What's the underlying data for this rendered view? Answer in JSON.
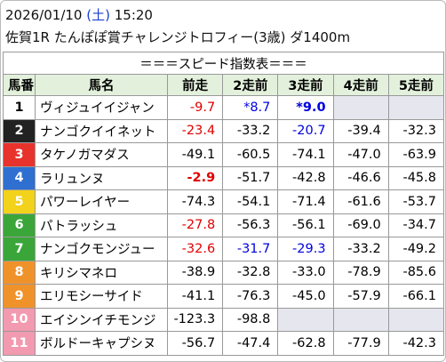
{
  "header": {
    "date": "2026/01/10",
    "weekday": "(土)",
    "time": "15:20",
    "race": "佐賀1R たんぽぽ賞チャレンジトロフィー(3歳) ダ1400m"
  },
  "table": {
    "title": "＝＝＝スピード指数表＝＝＝",
    "columns": [
      "馬番",
      "馬名",
      "前走",
      "2走前",
      "3走前",
      "4走前",
      "5走前"
    ],
    "rows": [
      {
        "number": "1",
        "frame_color": "#ffffff",
        "number_color": "#000000",
        "name": "ヴィジュイイジャン",
        "cells": [
          {
            "text": "-9.7",
            "color": "#e00000"
          },
          {
            "text": "*8.7",
            "color": "#0000e0"
          },
          {
            "text": "*9.0",
            "color": "#0000e0",
            "bold": true
          },
          null,
          null
        ]
      },
      {
        "number": "2",
        "frame_color": "#222222",
        "number_color": "#ffffff",
        "name": "ナンゴクイイネット",
        "cells": [
          {
            "text": "-23.4",
            "color": "#e00000"
          },
          {
            "text": "-33.2"
          },
          {
            "text": "-20.7",
            "color": "#0000e0"
          },
          {
            "text": "-39.4"
          },
          {
            "text": "-32.3"
          }
        ]
      },
      {
        "number": "3",
        "frame_color": "#e8322c",
        "number_color": "#ffffff",
        "name": "タケノガマダス",
        "cells": [
          {
            "text": "-49.1"
          },
          {
            "text": "-60.5"
          },
          {
            "text": "-74.1"
          },
          {
            "text": "-47.0"
          },
          {
            "text": "-63.9"
          }
        ]
      },
      {
        "number": "4",
        "frame_color": "#2f6fd0",
        "number_color": "#ffffff",
        "name": "ラリュンヌ",
        "cells": [
          {
            "text": "-2.9",
            "color": "#e00000",
            "bold": true
          },
          {
            "text": "-51.7"
          },
          {
            "text": "-42.8"
          },
          {
            "text": "-46.6"
          },
          {
            "text": "-45.8"
          }
        ]
      },
      {
        "number": "5",
        "frame_color": "#f2d21a",
        "number_color": "#ffffff",
        "name": "パワーレイヤー",
        "cells": [
          {
            "text": "-74.3"
          },
          {
            "text": "-54.1"
          },
          {
            "text": "-71.4"
          },
          {
            "text": "-61.6"
          },
          {
            "text": "-53.7"
          }
        ]
      },
      {
        "number": "6",
        "frame_color": "#3aa63a",
        "number_color": "#ffffff",
        "name": "パトラッシュ",
        "cells": [
          {
            "text": "-27.8",
            "color": "#e00000"
          },
          {
            "text": "-56.3"
          },
          {
            "text": "-56.1"
          },
          {
            "text": "-69.0"
          },
          {
            "text": "-34.7"
          }
        ]
      },
      {
        "number": "7",
        "frame_color": "#3aa63a",
        "number_color": "#ffffff",
        "name": "ナンゴクモンジュー",
        "cells": [
          {
            "text": "-32.6",
            "color": "#e00000"
          },
          {
            "text": "-31.7",
            "color": "#0000e0"
          },
          {
            "text": "-29.3",
            "color": "#0000e0"
          },
          {
            "text": "-33.2"
          },
          {
            "text": "-49.2"
          }
        ]
      },
      {
        "number": "8",
        "frame_color": "#f0922a",
        "number_color": "#ffffff",
        "name": "キリシマネロ",
        "cells": [
          {
            "text": "-38.9"
          },
          {
            "text": "-32.8"
          },
          {
            "text": "-33.0"
          },
          {
            "text": "-78.9"
          },
          {
            "text": "-85.6"
          }
        ]
      },
      {
        "number": "9",
        "frame_color": "#f0922a",
        "number_color": "#ffffff",
        "name": "エリモシーサイド",
        "cells": [
          {
            "text": "-41.1"
          },
          {
            "text": "-76.3"
          },
          {
            "text": "-45.0"
          },
          {
            "text": "-57.9"
          },
          {
            "text": "-66.1"
          }
        ]
      },
      {
        "number": "10",
        "frame_color": "#f29ab0",
        "number_color": "#ffffff",
        "name": "エイシンイチモンジ",
        "cells": [
          {
            "text": "-123.3"
          },
          {
            "text": "-98.8"
          },
          null,
          null,
          null
        ]
      },
      {
        "number": "11",
        "frame_color": "#f29ab0",
        "number_color": "#ffffff",
        "name": "ボルドーキャプシヌ",
        "cells": [
          {
            "text": "-56.7"
          },
          {
            "text": "-47.4"
          },
          {
            "text": "-62.8"
          },
          {
            "text": "-77.9"
          },
          {
            "text": "-42.3"
          }
        ]
      }
    ]
  }
}
